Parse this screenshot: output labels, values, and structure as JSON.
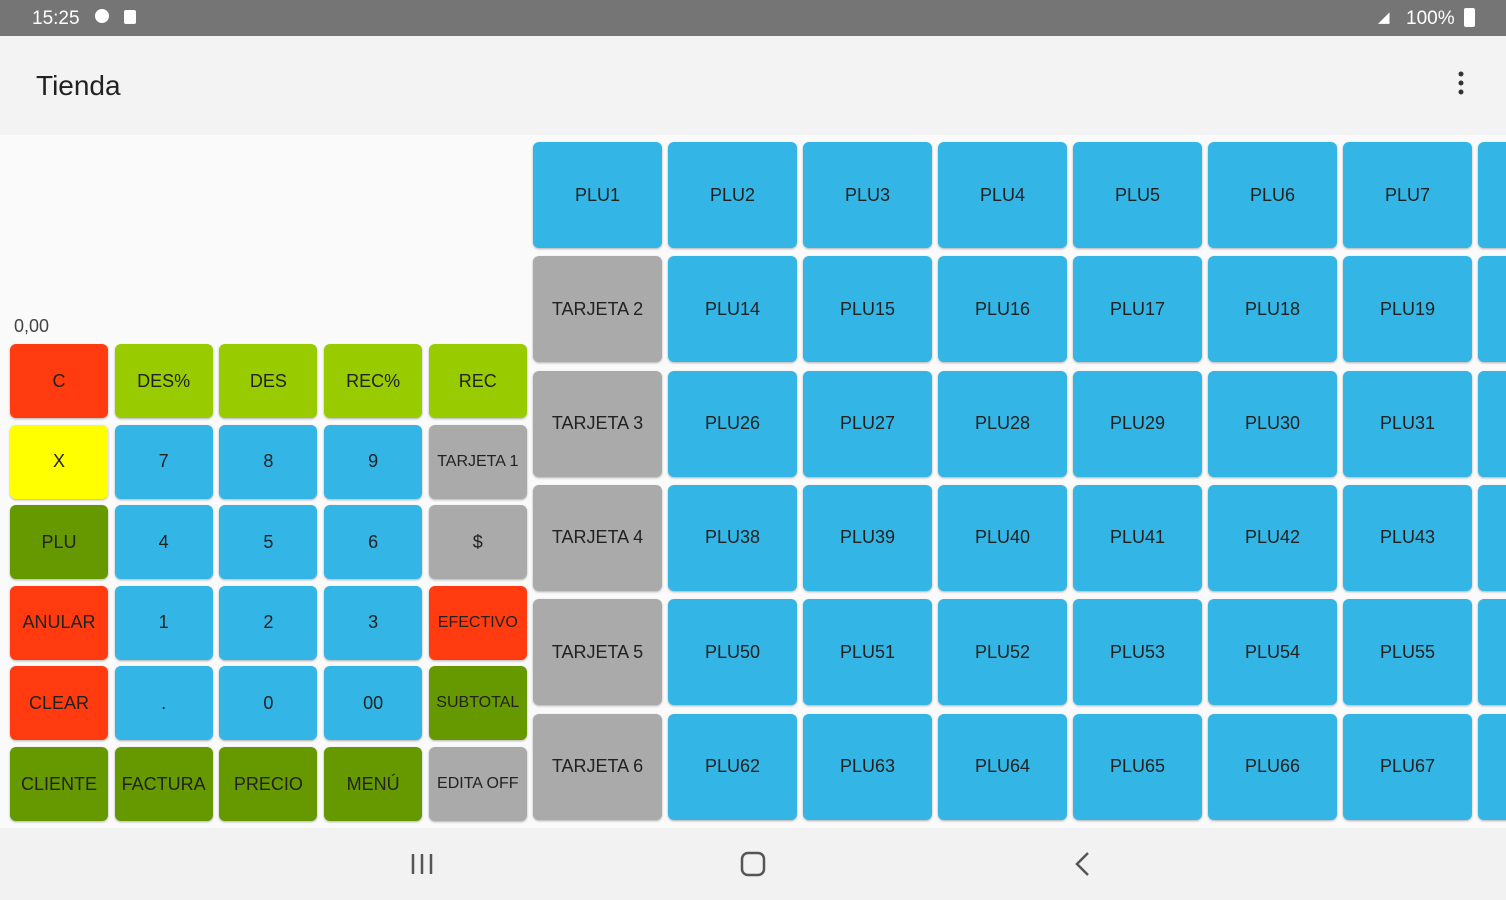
{
  "status_bar": {
    "time": "15:25",
    "battery": "100%"
  },
  "app_bar": {
    "title": "Tienda"
  },
  "display": "0,00",
  "keypad": [
    [
      {
        "label": "C",
        "color": "#ff3b0f"
      },
      {
        "label": "DES%",
        "color": "#99cc00"
      },
      {
        "label": "DES",
        "color": "#99cc00"
      },
      {
        "label": "REC%",
        "color": "#99cc00"
      },
      {
        "label": "REC",
        "color": "#99cc00"
      }
    ],
    [
      {
        "label": "X",
        "color": "#ffff00"
      },
      {
        "label": "7",
        "color": "#33b5e5"
      },
      {
        "label": "8",
        "color": "#33b5e5"
      },
      {
        "label": "9",
        "color": "#33b5e5"
      },
      {
        "label": "TARJETA 1",
        "color": "#aaaaaa"
      }
    ],
    [
      {
        "label": "PLU",
        "color": "#669900"
      },
      {
        "label": "4",
        "color": "#33b5e5"
      },
      {
        "label": "5",
        "color": "#33b5e5"
      },
      {
        "label": "6",
        "color": "#33b5e5"
      },
      {
        "label": "$",
        "color": "#aaaaaa"
      }
    ],
    [
      {
        "label": "ANULAR",
        "color": "#ff3b0f"
      },
      {
        "label": "1",
        "color": "#33b5e5"
      },
      {
        "label": "2",
        "color": "#33b5e5"
      },
      {
        "label": "3",
        "color": "#33b5e5"
      },
      {
        "label": "EFECTIVO",
        "color": "#ff3b0f"
      }
    ],
    [
      {
        "label": "CLEAR",
        "color": "#ff3b0f"
      },
      {
        "label": ".",
        "color": "#33b5e5"
      },
      {
        "label": "0",
        "color": "#33b5e5"
      },
      {
        "label": "00",
        "color": "#33b5e5"
      },
      {
        "label": "SUBTOTAL",
        "color": "#669900"
      }
    ],
    [
      {
        "label": "CLIENTE",
        "color": "#669900"
      },
      {
        "label": "FACTURA",
        "color": "#669900"
      },
      {
        "label": "PRECIO",
        "color": "#669900"
      },
      {
        "label": "MENÚ",
        "color": "#669900"
      },
      {
        "label": "EDITA OFF",
        "color": "#aaaaaa"
      }
    ]
  ],
  "plu_grid": [
    [
      "PLU1",
      "PLU2",
      "PLU3",
      "PLU4",
      "PLU5",
      "PLU6",
      "PLU7"
    ],
    [
      "TARJETA 2",
      "PLU14",
      "PLU15",
      "PLU16",
      "PLU17",
      "PLU18",
      "PLU19"
    ],
    [
      "TARJETA 3",
      "PLU26",
      "PLU27",
      "PLU28",
      "PLU29",
      "PLU30",
      "PLU31"
    ],
    [
      "TARJETA 4",
      "PLU38",
      "PLU39",
      "PLU40",
      "PLU41",
      "PLU42",
      "PLU43"
    ],
    [
      "TARJETA 5",
      "PLU50",
      "PLU51",
      "PLU52",
      "PLU53",
      "PLU54",
      "PLU55"
    ],
    [
      "TARJETA 6",
      "PLU62",
      "PLU63",
      "PLU64",
      "PLU65",
      "PLU66",
      "PLU67"
    ]
  ]
}
